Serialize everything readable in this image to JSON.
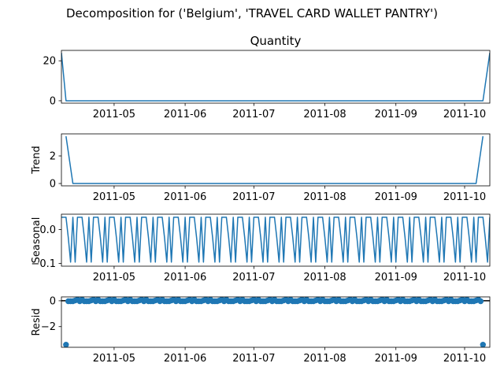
{
  "chart_data": {
    "type": "line",
    "suptitle": "Decomposition for ('Belgium', 'TRAVEL CARD WALLET PANTRY')",
    "xlim": [
      "2011-04-08",
      "2011-10-12"
    ],
    "xticks": [
      "2011-05-01",
      "2011-06-01",
      "2011-07-01",
      "2011-08-01",
      "2011-09-01",
      "2011-10-01"
    ],
    "xtick_labels": [
      "2011-05",
      "2011-06",
      "2011-07",
      "2011-08",
      "2011-09",
      "2011-10"
    ],
    "color": "#1f77b4",
    "panels": [
      {
        "id": "observed",
        "title": "Quantity",
        "ylabel": "",
        "kind": "line",
        "ylim": [
          -1.2,
          25.2
        ],
        "yticks": [
          0,
          20
        ],
        "ytick_labels": [
          "0",
          "20"
        ],
        "x": [
          "2011-04-08",
          "2011-04-10",
          "2011-10-09",
          "2011-10-12"
        ],
        "y": [
          24,
          0,
          0,
          24
        ]
      },
      {
        "id": "trend",
        "title": "",
        "ylabel": "Trend",
        "kind": "line",
        "ylim": [
          -0.17,
          3.6
        ],
        "yticks": [
          0,
          2
        ],
        "ytick_labels": [
          "0",
          "2"
        ],
        "x": [
          "2011-04-10",
          "2011-04-13",
          "2011-10-06",
          "2011-10-09"
        ],
        "y": [
          3.43,
          0,
          0,
          3.43
        ]
      },
      {
        "id": "seasonal",
        "title": "",
        "ylabel": "Seasonal",
        "kind": "line",
        "ylim": [
          -0.108,
          0.045
        ],
        "yticks": [
          -0.1,
          0.0
        ],
        "ytick_labels": [
          "−0.1",
          "0.0"
        ],
        "period": 7,
        "pattern": [
          0.036,
          0.036,
          0.036,
          -0.024,
          -0.096,
          0.036,
          -0.096
        ],
        "start": "2011-04-08",
        "end": "2011-10-12"
      },
      {
        "id": "resid",
        "title": "",
        "ylabel": "Resid",
        "kind": "scatter",
        "ylim": [
          -3.6,
          0.3
        ],
        "yticks": [
          0,
          -2
        ],
        "ytick_labels": [
          "0",
          "−2"
        ],
        "hline": 0,
        "start": "2011-04-11",
        "end": "2011-10-08",
        "period": 7,
        "pattern": [
          -0.036,
          -0.036,
          -0.036,
          0.024,
          0.096,
          -0.036,
          0.096
        ],
        "extremes": [
          {
            "x": "2011-04-10",
            "y": -3.4
          },
          {
            "x": "2011-10-09",
            "y": -3.4
          }
        ]
      }
    ]
  }
}
